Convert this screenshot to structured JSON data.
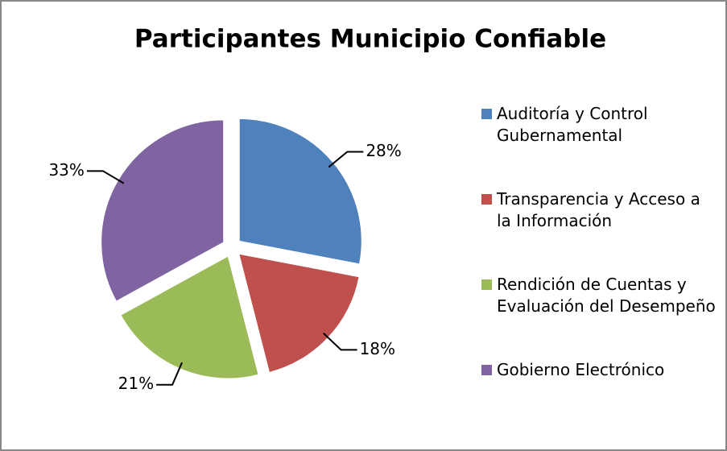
{
  "chart_data": {
    "type": "pie",
    "title": "Participantes Municipio Confiable",
    "categories": [
      "Auditoría y Control Gubernamental",
      "Transparencia y Acceso a la Información",
      "Rendición de Cuentas y Evaluación del Desempeño",
      "Gobierno Electrónico"
    ],
    "values": [
      28,
      18,
      21,
      33
    ],
    "value_labels": [
      "28%",
      "18%",
      "21%",
      "33%"
    ],
    "colors": [
      "#4f81bd",
      "#c0504d",
      "#9bbb59",
      "#8064a2"
    ],
    "legend": "right"
  }
}
